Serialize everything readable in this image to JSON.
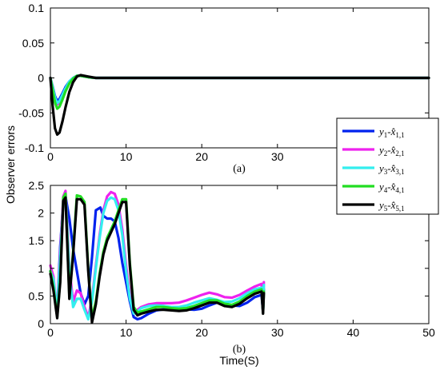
{
  "figure": {
    "ylabel": "Observer errors",
    "xlabel": "Time(S)"
  },
  "chart_data": [
    {
      "type": "line",
      "panel_label": "(a)",
      "xlim": [
        0,
        50
      ],
      "ylim": [
        -0.1,
        0.1
      ],
      "x_ticks": [
        0,
        10,
        20,
        30,
        40,
        50
      ],
      "x_tick_labels": [
        "0",
        "10",
        "20",
        "30",
        "40",
        "50"
      ],
      "y_ticks": [
        -0.1,
        -0.05,
        0,
        0.05,
        0.1
      ],
      "y_tick_labels": [
        "-0.1",
        "-0.05",
        "0",
        "0.05",
        "0.1"
      ],
      "grid": false,
      "series": [
        {
          "color": "#0022ee",
          "x": [
            0,
            0.3,
            0.6,
            0.9,
            1.2,
            1.6,
            2.0,
            2.5,
            3.0,
            3.5,
            4.0,
            5.0,
            6.0,
            8.0,
            10,
            50
          ],
          "y": [
            0,
            -0.012,
            -0.026,
            -0.033,
            -0.03,
            -0.022,
            -0.013,
            -0.005,
            0.0,
            0.003,
            0.003,
            0.001,
            0.0,
            0.0,
            0.0,
            0.0
          ]
        },
        {
          "color": "#ee22ee",
          "x": [
            0,
            0.3,
            0.6,
            0.9,
            1.2,
            1.6,
            2.0,
            2.5,
            3.0,
            3.5,
            4.0,
            5.0,
            6.0,
            8.0,
            10,
            50
          ],
          "y": [
            0,
            -0.014,
            -0.03,
            -0.038,
            -0.035,
            -0.026,
            -0.016,
            -0.006,
            0.0,
            0.003,
            0.003,
            0.001,
            0.0,
            0.0,
            0.0,
            0.0
          ]
        },
        {
          "color": "#33eeee",
          "x": [
            0,
            0.3,
            0.6,
            0.9,
            1.2,
            1.6,
            2.0,
            2.5,
            3.0,
            3.5,
            4.0,
            5.0,
            6.0,
            8.0,
            10,
            50
          ],
          "y": [
            0,
            -0.013,
            -0.028,
            -0.036,
            -0.033,
            -0.024,
            -0.015,
            -0.005,
            0.0,
            0.003,
            0.003,
            0.001,
            0.0,
            0.0,
            0.0,
            0.0
          ]
        },
        {
          "color": "#22dd22",
          "x": [
            0,
            0.3,
            0.6,
            0.9,
            1.2,
            1.6,
            2.0,
            2.5,
            3.0,
            3.5,
            4.0,
            5.0,
            6.0,
            8.0,
            10,
            50
          ],
          "y": [
            0,
            -0.017,
            -0.035,
            -0.044,
            -0.041,
            -0.031,
            -0.019,
            -0.008,
            -0.001,
            0.003,
            0.003,
            0.001,
            0.0,
            0.0,
            0.0,
            0.0
          ]
        },
        {
          "color": "#000000",
          "x": [
            0,
            0.3,
            0.6,
            0.9,
            1.2,
            1.6,
            2.0,
            2.5,
            3.0,
            3.5,
            4.0,
            5.0,
            6.0,
            8.0,
            10,
            50
          ],
          "y": [
            0,
            -0.04,
            -0.072,
            -0.081,
            -0.078,
            -0.062,
            -0.042,
            -0.02,
            -0.006,
            0.002,
            0.004,
            0.002,
            0.0,
            0.0,
            0.0,
            0.0
          ]
        }
      ]
    },
    {
      "type": "line",
      "panel_label": "(b)",
      "xlim": [
        0,
        50
      ],
      "ylim": [
        0,
        2.5
      ],
      "x_ticks": [
        0,
        10,
        20,
        30,
        40,
        50
      ],
      "x_tick_labels": [
        "0",
        "10",
        "20",
        "30",
        "40",
        "50"
      ],
      "y_ticks": [
        0,
        0.5,
        1,
        1.5,
        2,
        2.5
      ],
      "y_tick_labels": [
        "0",
        "0.5",
        "1",
        "1.5",
        "2",
        "2.5"
      ],
      "grid": false,
      "legend": {
        "placement": "right",
        "entries": [
          {
            "var": "y",
            "sub": "1",
            "hat": "x",
            "hat_sub": "1,1",
            "color": "#0022ee"
          },
          {
            "var": "y",
            "sub": "2",
            "hat": "x",
            "hat_sub": "2,1",
            "color": "#ee22ee"
          },
          {
            "var": "y",
            "sub": "3",
            "hat": "x",
            "hat_sub": "3,1",
            "color": "#33eeee"
          },
          {
            "var": "y",
            "sub": "4",
            "hat": "x",
            "hat_sub": "4,1",
            "color": "#22dd22"
          },
          {
            "var": "y",
            "sub": "5",
            "hat": "x",
            "hat_sub": "5,1",
            "color": "#000000"
          }
        ]
      },
      "series": [
        {
          "color": "#0022ee",
          "x": [
            0,
            0.4,
            0.9,
            1.3,
            1.7,
            2.0,
            2.5,
            3.0,
            3.5,
            4.0,
            4.5,
            5.0,
            5.5,
            6.0,
            6.6,
            7.0,
            7.5,
            8.0,
            8.5,
            9.0,
            9.5,
            10.0,
            10.5,
            11.0,
            11.5,
            12.0,
            13,
            14,
            15,
            16,
            17,
            18,
            19,
            20,
            21,
            22,
            23,
            24,
            25,
            26,
            27,
            27.9,
            28.1,
            28.2
          ],
          "y": [
            0.95,
            0.75,
            0.25,
            1.4,
            2.2,
            2.3,
            1.9,
            1.35,
            0.95,
            0.55,
            0.35,
            0.5,
            1.2,
            2.05,
            2.1,
            1.95,
            1.9,
            1.9,
            1.85,
            1.55,
            1.1,
            0.75,
            0.4,
            0.12,
            0.08,
            0.1,
            0.18,
            0.24,
            0.26,
            0.27,
            0.27,
            0.26,
            0.25,
            0.27,
            0.33,
            0.38,
            0.37,
            0.33,
            0.32,
            0.38,
            0.48,
            0.52,
            0.22,
            0.62
          ]
        },
        {
          "color": "#ee22ee",
          "x": [
            0,
            0.4,
            0.9,
            1.3,
            1.7,
            2.0,
            2.5,
            3.0,
            3.5,
            4.0,
            4.5,
            5.0,
            5.5,
            6.0,
            6.5,
            7.0,
            7.5,
            8.0,
            8.5,
            9.0,
            9.5,
            10.0,
            10.5,
            11.0,
            11.5,
            12.0,
            13,
            14,
            15,
            16,
            17,
            18,
            19,
            20,
            21,
            22,
            23,
            24,
            25,
            26,
            27,
            27.9,
            28.1,
            28.2
          ],
          "y": [
            1.05,
            0.85,
            0.2,
            1.3,
            2.3,
            2.4,
            1.0,
            0.4,
            0.6,
            0.55,
            0.3,
            0.12,
            0.45,
            1.05,
            1.6,
            2.05,
            2.3,
            2.38,
            2.35,
            2.15,
            1.7,
            1.05,
            0.5,
            0.2,
            0.25,
            0.3,
            0.35,
            0.37,
            0.37,
            0.37,
            0.38,
            0.42,
            0.47,
            0.52,
            0.56,
            0.53,
            0.48,
            0.47,
            0.52,
            0.6,
            0.67,
            0.72,
            0.25,
            0.75
          ]
        },
        {
          "color": "#33eeee",
          "x": [
            0,
            0.4,
            0.9,
            1.3,
            1.7,
            2.0,
            2.5,
            3.0,
            3.5,
            4.0,
            4.5,
            5.0,
            5.5,
            6.0,
            6.5,
            7.0,
            7.5,
            8.0,
            8.5,
            9.0,
            9.5,
            10.0,
            10.5,
            11.0,
            11.5,
            12.0,
            13,
            14,
            15,
            16,
            17,
            18,
            19,
            20,
            21,
            22,
            23,
            24,
            25,
            26,
            27,
            27.9,
            28.1,
            28.2
          ],
          "y": [
            0.95,
            0.8,
            0.2,
            1.2,
            2.2,
            2.35,
            0.9,
            0.3,
            0.45,
            0.45,
            0.25,
            0.08,
            0.4,
            1.0,
            1.55,
            2.0,
            2.22,
            2.28,
            2.25,
            2.05,
            1.6,
            0.95,
            0.45,
            0.18,
            0.22,
            0.28,
            0.32,
            0.33,
            0.32,
            0.3,
            0.3,
            0.33,
            0.38,
            0.42,
            0.46,
            0.43,
            0.39,
            0.4,
            0.46,
            0.55,
            0.62,
            0.65,
            0.22,
            0.7
          ]
        },
        {
          "color": "#22dd22",
          "x": [
            0,
            0.4,
            0.9,
            1.3,
            1.7,
            2.0,
            2.5,
            3.0,
            3.5,
            4.0,
            4.5,
            5.0,
            5.5,
            6.0,
            6.5,
            7.0,
            7.5,
            8.0,
            8.5,
            9.0,
            9.5,
            10.0,
            10.5,
            11.0,
            11.5,
            12.0,
            13,
            14,
            15,
            16,
            17,
            18,
            19,
            20,
            21,
            22,
            23,
            24,
            25,
            26,
            27,
            27.9,
            28.1,
            28.2
          ],
          "y": [
            0.95,
            0.65,
            0.12,
            0.8,
            2.28,
            2.35,
            0.5,
            1.3,
            2.32,
            2.3,
            2.2,
            1.0,
            0.1,
            0.4,
            0.9,
            1.3,
            1.55,
            1.7,
            1.85,
            2.05,
            2.25,
            2.25,
            1.1,
            0.3,
            0.2,
            0.22,
            0.26,
            0.3,
            0.3,
            0.28,
            0.27,
            0.28,
            0.32,
            0.37,
            0.42,
            0.42,
            0.36,
            0.34,
            0.4,
            0.5,
            0.58,
            0.62,
            0.2,
            0.58
          ]
        },
        {
          "color": "#000000",
          "x": [
            0,
            0.4,
            0.9,
            1.3,
            1.7,
            2.0,
            2.5,
            3.0,
            3.5,
            4.0,
            4.5,
            5.0,
            5.5,
            6.0,
            6.5,
            7.0,
            7.5,
            8.0,
            8.5,
            9.0,
            9.5,
            10.0,
            10.5,
            11.0,
            11.5,
            12.0,
            13,
            14,
            15,
            16,
            17,
            18,
            19,
            20,
            21,
            22,
            23,
            24,
            25,
            26,
            27,
            27.9,
            28.1,
            28.2
          ],
          "y": [
            0.9,
            0.6,
            0.1,
            0.75,
            2.22,
            2.28,
            0.45,
            1.25,
            2.25,
            2.25,
            2.15,
            0.95,
            0.02,
            0.35,
            0.85,
            1.25,
            1.5,
            1.65,
            1.8,
            2.0,
            2.2,
            2.2,
            1.05,
            0.25,
            0.15,
            0.18,
            0.22,
            0.25,
            0.25,
            0.24,
            0.23,
            0.24,
            0.28,
            0.33,
            0.38,
            0.38,
            0.32,
            0.3,
            0.36,
            0.46,
            0.54,
            0.58,
            0.18,
            0.55
          ]
        }
      ]
    }
  ]
}
